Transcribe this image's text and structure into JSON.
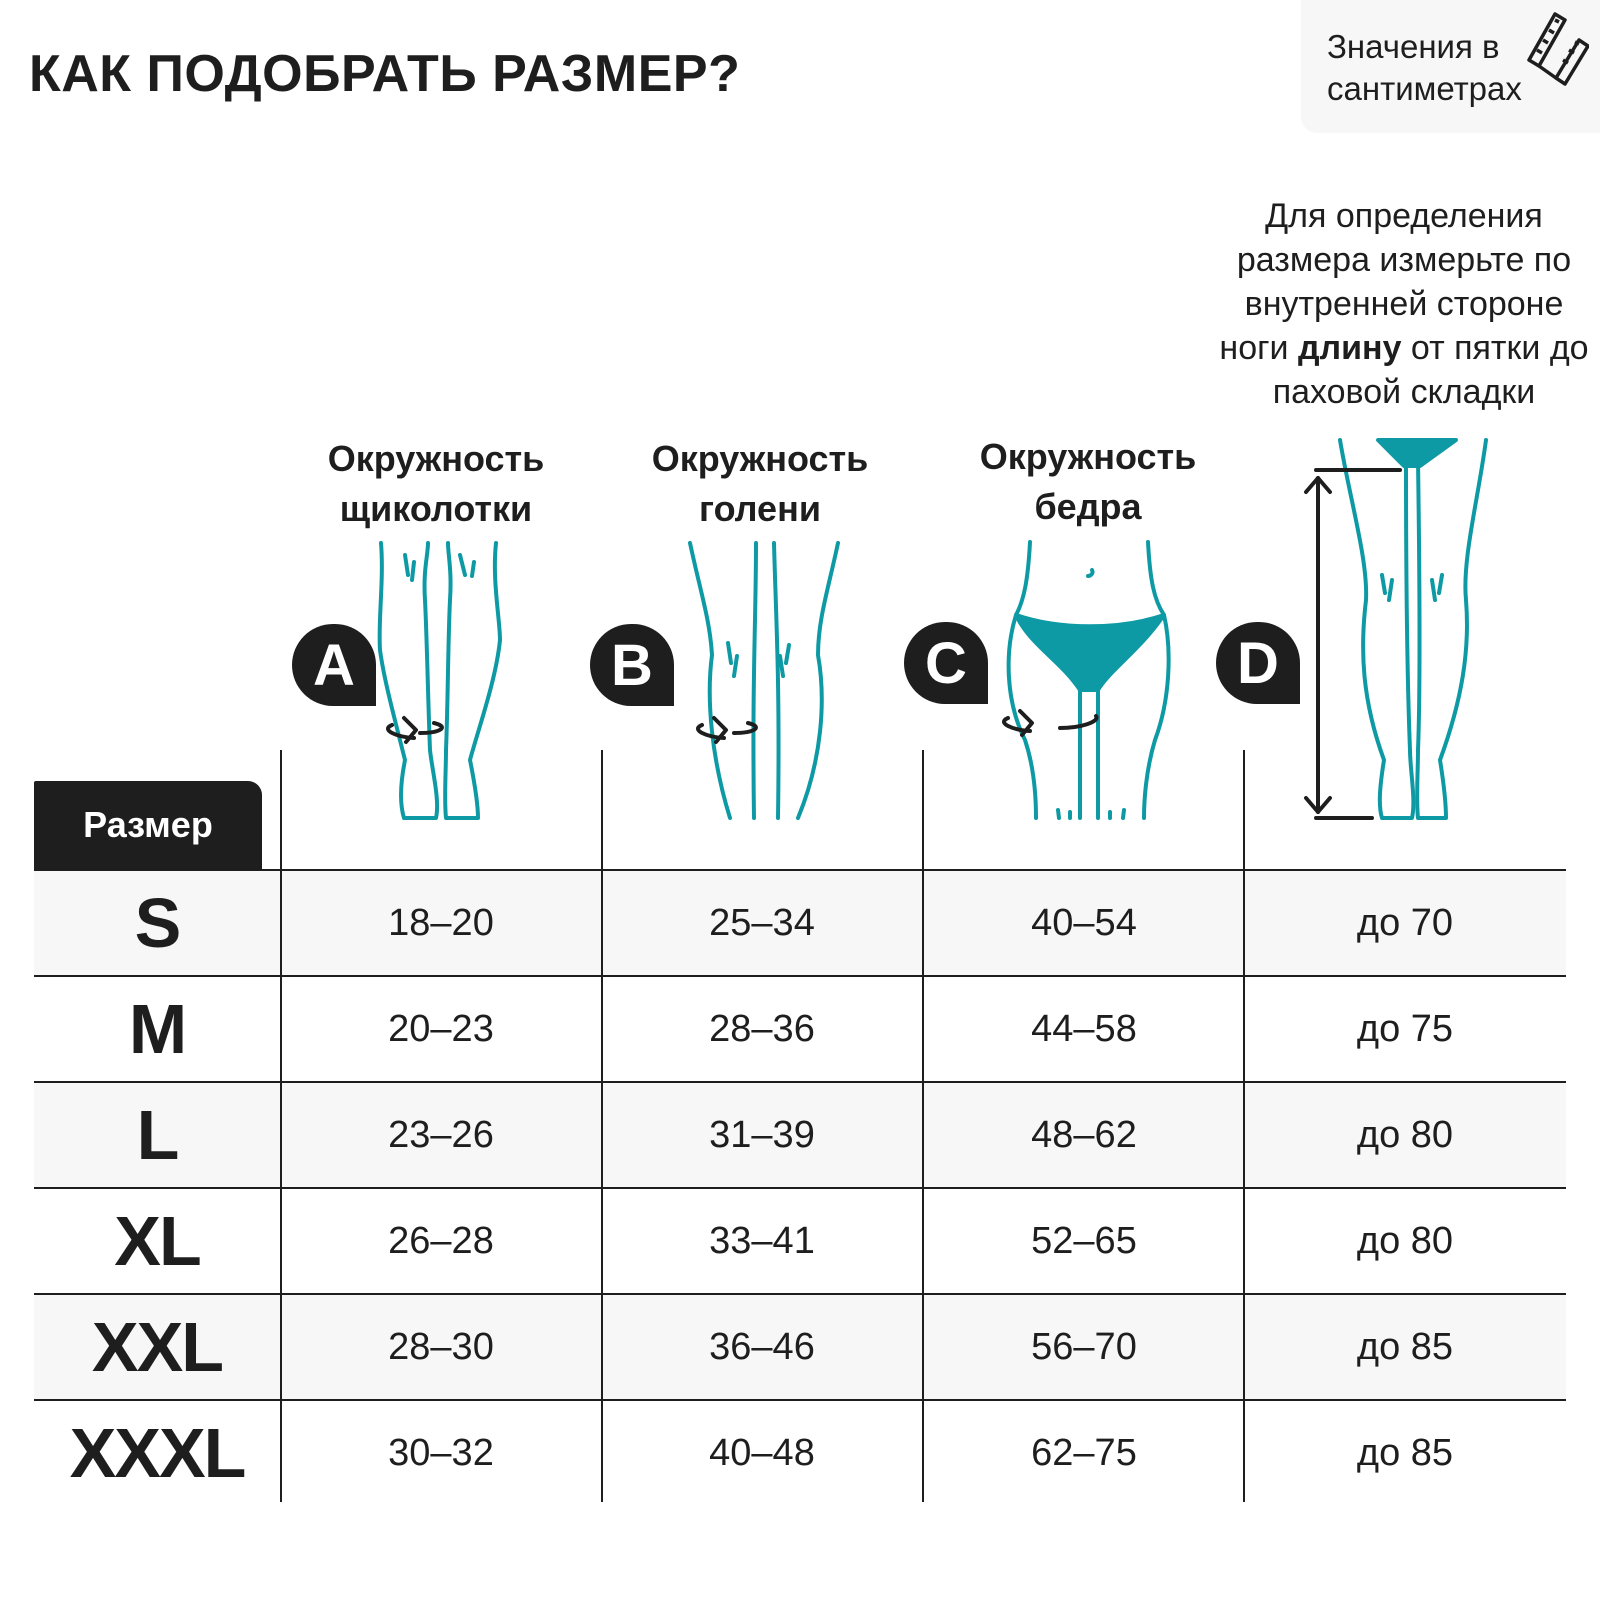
{
  "title": "КАК ПОДОБРАТЬ РАЗМЕР?",
  "units_note": {
    "line1": "Значения в",
    "line2": "сантиметрах",
    "icon": "measuring-tape-icon"
  },
  "instruction": {
    "part1": "Для определения размера измерьте по внутренней стороне ноги ",
    "bold": "длину",
    "part2": " от пятки до паховой складки"
  },
  "columns": [
    {
      "letter": "A",
      "line1": "Окружность",
      "line2": "щиколотки"
    },
    {
      "letter": "B",
      "line1": "Окружность",
      "line2": "голени"
    },
    {
      "letter": "C",
      "line1": "Окружность",
      "line2": "бедра"
    },
    {
      "letter": "D",
      "line1": "",
      "line2": ""
    }
  ],
  "size_header": "Размер",
  "accent_color": "#0e9aa4",
  "rows": [
    {
      "size": "S",
      "a": "18–20",
      "b": "25–34",
      "c": "40–54",
      "d": "до 70"
    },
    {
      "size": "M",
      "a": "20–23",
      "b": "28–36",
      "c": "44–58",
      "d": "до 75"
    },
    {
      "size": "L",
      "a": "23–26",
      "b": "31–39",
      "c": "48–62",
      "d": "до 80"
    },
    {
      "size": "XL",
      "a": "26–28",
      "b": "33–41",
      "c": "52–65",
      "d": "до 80"
    },
    {
      "size": "XXL",
      "a": "28–30",
      "b": "36–46",
      "c": "56–70",
      "d": "до 85"
    },
    {
      "size": "XXXL",
      "a": "30–32",
      "b": "40–48",
      "c": "62–75",
      "d": "до 85"
    }
  ]
}
